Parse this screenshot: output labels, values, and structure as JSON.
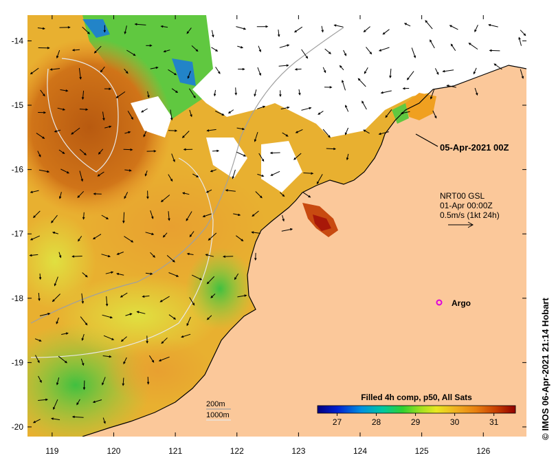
{
  "map": {
    "x_ticks": [
      "119",
      "120",
      "121",
      "122",
      "123",
      "124",
      "125",
      "126"
    ],
    "y_ticks": [
      "-14",
      "-15",
      "-16",
      "-17",
      "-18",
      "-19",
      "-20"
    ],
    "lon_range": [
      118.6,
      126.7
    ],
    "lat_range": [
      -20.15,
      -13.6
    ]
  },
  "annotations": {
    "time_label": "05-Apr-2021 00Z",
    "current_product": "NRT00 GSL",
    "current_time": "01-Apr 00:00Z",
    "current_scale": "0.5m/s (1kt 24h)",
    "argo_label": "Argo",
    "depth_200": "200m",
    "depth_1000": "1000m"
  },
  "colorbar": {
    "title": "Filled 4h comp, p50, All Sats",
    "ticks": [
      "27",
      "28",
      "29",
      "30",
      "31"
    ],
    "tick_values": [
      27,
      28,
      29,
      30,
      31
    ],
    "range": [
      26.5,
      31.55
    ]
  },
  "credit": "© IMOS 06-Apr-2021 21:14 Hobart",
  "colors": {
    "land": "#fbc89a",
    "argo_marker": "#dd00dd"
  }
}
